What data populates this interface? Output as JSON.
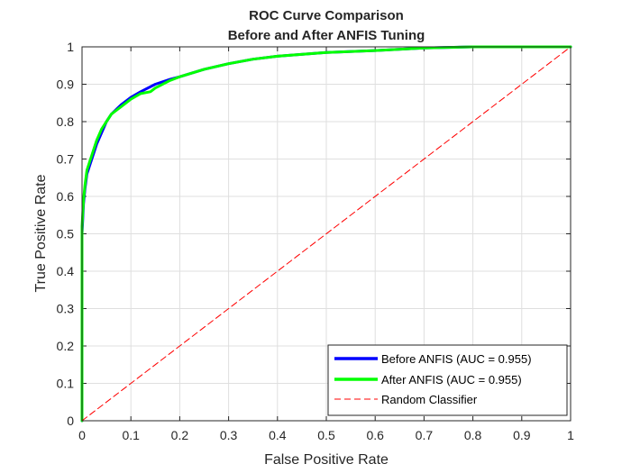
{
  "chart_data": {
    "type": "line",
    "title": [
      "ROC Curve Comparison",
      "Before and After ANFIS Tuning"
    ],
    "xlabel": "False Positive Rate",
    "ylabel": "True Positive Rate",
    "xlim": [
      0,
      1
    ],
    "ylim": [
      0,
      1
    ],
    "xticks": [
      "0",
      "0.1",
      "0.2",
      "0.3",
      "0.4",
      "0.5",
      "0.6",
      "0.7",
      "0.8",
      "0.9",
      "1"
    ],
    "yticks": [
      "0",
      "0.1",
      "0.2",
      "0.3",
      "0.4",
      "0.5",
      "0.6",
      "0.7",
      "0.8",
      "0.9",
      "1"
    ],
    "grid": true,
    "legend_position": "bottom-right",
    "series": [
      {
        "name": "Before ANFIS (AUC = 0.955)",
        "color": "#0000ff",
        "style": "solid",
        "x": [
          0,
          0,
          0.003,
          0.006,
          0.01,
          0.015,
          0.02,
          0.03,
          0.04,
          0.05,
          0.06,
          0.08,
          0.1,
          0.12,
          0.15,
          0.18,
          0.2,
          0.25,
          0.3,
          0.35,
          0.4,
          0.5,
          0.6,
          0.7,
          0.8,
          0.9,
          1
        ],
        "y": [
          0,
          0.5,
          0.58,
          0.62,
          0.66,
          0.68,
          0.7,
          0.74,
          0.77,
          0.8,
          0.82,
          0.845,
          0.865,
          0.88,
          0.9,
          0.913,
          0.92,
          0.94,
          0.955,
          0.967,
          0.975,
          0.985,
          0.99,
          0.997,
          1,
          1,
          1
        ]
      },
      {
        "name": "After ANFIS (AUC = 0.955)",
        "color": "#00ff00",
        "style": "solid",
        "x": [
          0,
          0,
          0.003,
          0.006,
          0.01,
          0.015,
          0.02,
          0.03,
          0.04,
          0.05,
          0.06,
          0.08,
          0.1,
          0.12,
          0.14,
          0.15,
          0.18,
          0.2,
          0.25,
          0.3,
          0.35,
          0.4,
          0.5,
          0.6,
          0.7,
          0.8,
          0.9,
          1
        ],
        "y": [
          0,
          0.52,
          0.59,
          0.63,
          0.67,
          0.69,
          0.71,
          0.75,
          0.78,
          0.8,
          0.82,
          0.84,
          0.86,
          0.875,
          0.88,
          0.89,
          0.91,
          0.92,
          0.94,
          0.955,
          0.967,
          0.975,
          0.985,
          0.99,
          0.997,
          1,
          1,
          1
        ]
      },
      {
        "name": "Random Classifier",
        "color": "#ff0000",
        "style": "dashed",
        "x": [
          0,
          1
        ],
        "y": [
          0,
          1
        ]
      }
    ]
  }
}
